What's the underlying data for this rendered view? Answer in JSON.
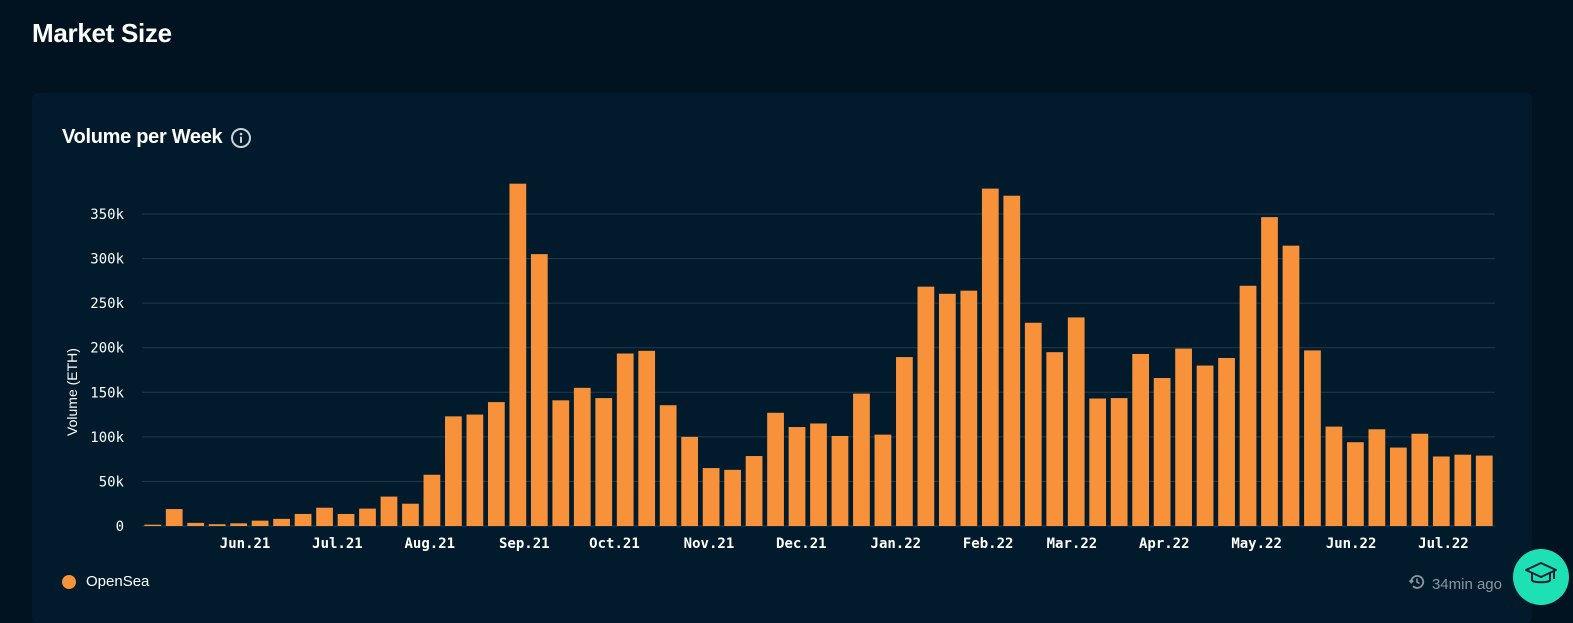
{
  "page": {
    "title": "Market Size"
  },
  "card": {
    "title": "Volume per Week",
    "info_icon": "info-circle-icon"
  },
  "legend": {
    "label": "OpenSea",
    "color": "#F7923A"
  },
  "footer": {
    "updated": "34min ago",
    "clock_icon": "history-clock-icon"
  },
  "help_button": {
    "icon": "graduation-cap-icon",
    "color": "#1DE0B4"
  },
  "colors": {
    "bar": "#F7923A",
    "grid": "#1e3a50",
    "background": "#011220",
    "card": "#011A2C"
  },
  "chart_data": {
    "type": "bar",
    "title": "Volume per Week",
    "ylabel": "Volume (ETH)",
    "xlabel": "",
    "ylim": [
      0,
      375000
    ],
    "yticks": [
      0,
      50000,
      100000,
      150000,
      200000,
      250000,
      300000,
      350000
    ],
    "ytick_labels": [
      "0",
      "50k",
      "100k",
      "150k",
      "200k",
      "250k",
      "300k",
      "350k"
    ],
    "grid": true,
    "legend_position": "bottom-left",
    "xtick_labels": [
      {
        "label": "Jun.21",
        "bar_index": 4.3
      },
      {
        "label": "Jul.21",
        "bar_index": 8.6
      },
      {
        "label": "Aug.21",
        "bar_index": 12.9
      },
      {
        "label": "Sep.21",
        "bar_index": 17.3
      },
      {
        "label": "Oct.21",
        "bar_index": 21.5
      },
      {
        "label": "Nov.21",
        "bar_index": 25.9
      },
      {
        "label": "Dec.21",
        "bar_index": 30.2
      },
      {
        "label": "Jan.22",
        "bar_index": 34.6
      },
      {
        "label": "Feb.22",
        "bar_index": 38.9
      },
      {
        "label": "Mar.22",
        "bar_index": 42.8
      },
      {
        "label": "Apr.22",
        "bar_index": 47.1
      },
      {
        "label": "May.22",
        "bar_index": 51.4
      },
      {
        "label": "Jun.22",
        "bar_index": 55.8
      },
      {
        "label": "Jul.22",
        "bar_index": 60.1
      }
    ],
    "series": [
      {
        "name": "OpenSea",
        "values": [
          1500,
          19000,
          3500,
          2000,
          3000,
          6000,
          8000,
          13500,
          20500,
          13500,
          19500,
          33000,
          25000,
          57500,
          123000,
          125000,
          139000,
          384000,
          305000,
          141000,
          155000,
          143500,
          193500,
          196500,
          135500,
          100000,
          65000,
          63000,
          78500,
          127000,
          111000,
          115000,
          101000,
          148500,
          102500,
          189500,
          268500,
          260500,
          264000,
          378500,
          370500,
          228000,
          195000,
          234000,
          143000,
          143500,
          193000,
          166000,
          199000,
          180000,
          188500,
          269500,
          346500,
          314500,
          197000,
          111500,
          94000,
          108500,
          88000,
          103500,
          78000,
          80000,
          79000
        ]
      }
    ]
  }
}
